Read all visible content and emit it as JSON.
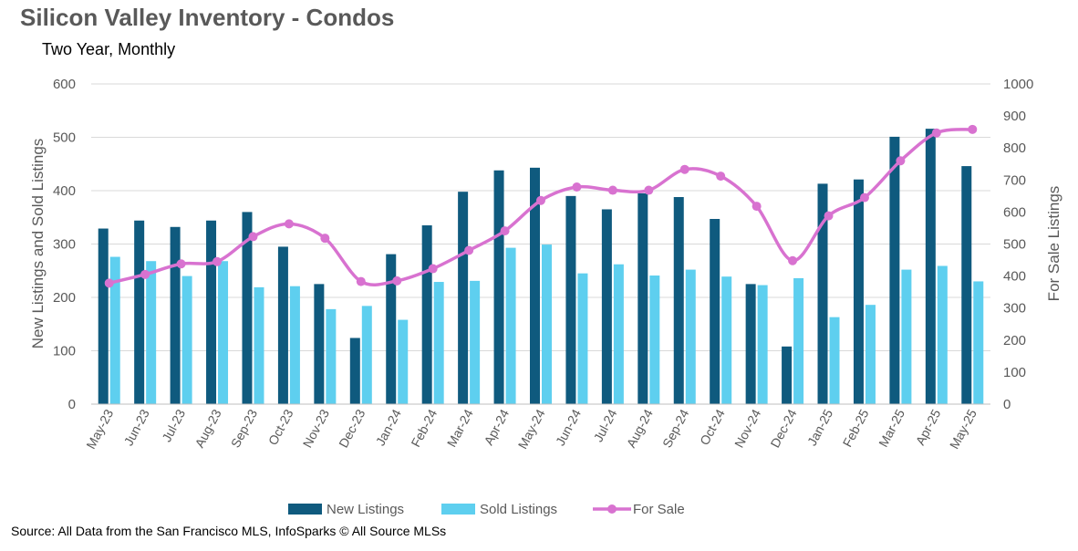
{
  "chart_data": {
    "type": "bar",
    "title": "Silicon Valley Inventory - Condos",
    "subtitle": "Two Year, Monthly",
    "categories": [
      "May-23",
      "Jun-23",
      "Jul-23",
      "Aug-23",
      "Sep-23",
      "Oct-23",
      "Nov-23",
      "Dec-23",
      "Jan-24",
      "Feb-24",
      "Mar-24",
      "Apr-24",
      "May-24",
      "Jun-24",
      "Jul-24",
      "Aug-24",
      "Sep-24",
      "Oct-24",
      "Nov-24",
      "Dec-24",
      "Jan-25",
      "Feb-25",
      "Mar-25",
      "Apr-25",
      "May-25"
    ],
    "series": [
      {
        "name": "New Listings",
        "type": "bar",
        "axis": "left",
        "color": "#0f5a7e",
        "values": [
          329,
          344,
          332,
          344,
          360,
          295,
          225,
          124,
          281,
          335,
          398,
          438,
          443,
          390,
          365,
          395,
          388,
          347,
          225,
          108,
          413,
          421,
          501,
          516,
          446
        ]
      },
      {
        "name": "Sold Listings",
        "type": "bar",
        "axis": "left",
        "color": "#5ecfef",
        "values": [
          276,
          268,
          240,
          268,
          219,
          221,
          178,
          184,
          158,
          229,
          231,
          293,
          299,
          245,
          262,
          241,
          252,
          239,
          223,
          236,
          163,
          186,
          252,
          259,
          230
        ]
      },
      {
        "name": "For Sale",
        "type": "line",
        "axis": "right",
        "color": "#d872d0",
        "values": [
          378,
          405,
          438,
          445,
          523,
          563,
          518,
          383,
          385,
          423,
          480,
          541,
          636,
          678,
          668,
          668,
          733,
          712,
          618,
          448,
          588,
          645,
          760,
          847,
          858
        ]
      }
    ],
    "ylabel": "New Listings and Sold Listings",
    "ylabel_right": "For Sale Listings",
    "ylim": [
      0,
      600
    ],
    "ylim_right": [
      0,
      1000
    ],
    "yticks": [
      "0",
      "100",
      "200",
      "300",
      "400",
      "500",
      "600"
    ],
    "yticks_right": [
      "0",
      "100",
      "200",
      "300",
      "400",
      "500",
      "600",
      "700",
      "800",
      "900",
      "1000"
    ],
    "grid": true,
    "legend": "bottom"
  },
  "source": "Source: All Data from the San Francisco MLS, InfoSparks © All Source MLSs"
}
